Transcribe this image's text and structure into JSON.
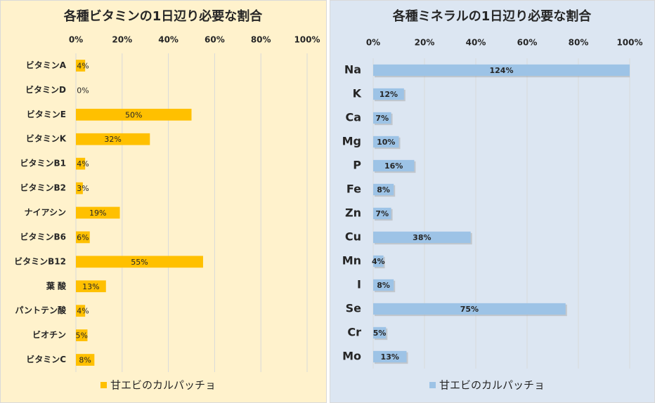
{
  "chart_data": [
    {
      "type": "bar",
      "orientation": "horizontal",
      "title": "各種ビタミンの1日辺り必要な割合",
      "categories": [
        "ビタミンA",
        "ビタミンD",
        "ビタミンE",
        "ビタミンK",
        "ビタミンB1",
        "ビタミンB2",
        "ナイアシン",
        "ビタミンB6",
        "ビタミンB12",
        "葉 酸",
        "パントテン酸",
        "ビオチン",
        "ビタミンC"
      ],
      "series": [
        {
          "name": "甘エビのカルパッチョ",
          "color": "#ffc000",
          "values": [
            4,
            0,
            50,
            32,
            4,
            3,
            19,
            6,
            55,
            13,
            4,
            5,
            8
          ],
          "value_labels": [
            "4%",
            "0%",
            "50%",
            "32%",
            "4%",
            "3%",
            "19%",
            "6%",
            "55%",
            "13%",
            "4%",
            "5%",
            "8%"
          ]
        }
      ],
      "xlim": [
        0,
        100
      ],
      "xticks": [
        {
          "value": 0,
          "label": "0%"
        },
        {
          "value": 20,
          "label": "20%"
        },
        {
          "value": 40,
          "label": "40%"
        },
        {
          "value": 60,
          "label": "60%"
        },
        {
          "value": 80,
          "label": "80%"
        },
        {
          "value": 100,
          "label": "100%"
        }
      ],
      "grid": true,
      "legend": "bottom"
    },
    {
      "type": "bar",
      "orientation": "horizontal",
      "title": "各種ミネラルの1日辺り必要な割合",
      "categories": [
        "Na",
        "K",
        "Ca",
        "Mg",
        "P",
        "Fe",
        "Zn",
        "Cu",
        "Mn",
        "I",
        "Se",
        "Cr",
        "Mo"
      ],
      "series": [
        {
          "name": "甘エビのカルパッチョ",
          "color": "#9dc3e6",
          "values": [
            124,
            12,
            7,
            10,
            16,
            8,
            7,
            38,
            4,
            8,
            75,
            5,
            13
          ],
          "value_labels": [
            "124%",
            "12%",
            "7%",
            "10%",
            "16%",
            "8%",
            "7%",
            "38%",
            "4%",
            "8%",
            "75%",
            "5%",
            "13%"
          ]
        }
      ],
      "xlim": [
        0,
        100
      ],
      "xticks": [
        {
          "value": 0,
          "label": "0%"
        },
        {
          "value": 20,
          "label": "20%"
        },
        {
          "value": 40,
          "label": "40%"
        },
        {
          "value": 60,
          "label": "60%"
        },
        {
          "value": 80,
          "label": "80%"
        },
        {
          "value": 100,
          "label": "100%"
        }
      ],
      "grid": true,
      "legend": "bottom"
    }
  ]
}
